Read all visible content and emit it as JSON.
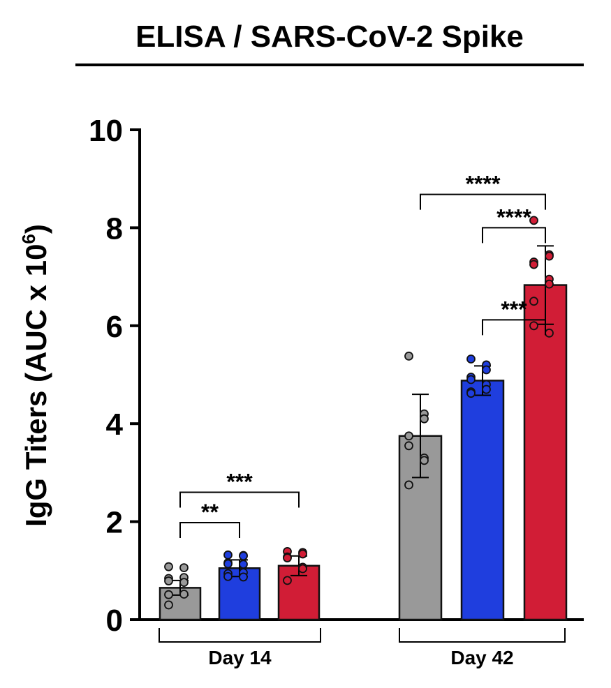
{
  "chart_data": {
    "type": "bar",
    "title": "ELISA / SARS-CoV-2 Spike",
    "ylabel": "IgG Titers (AUC x 10",
    "ylabel_sup": "6",
    "ylabel_close": ")",
    "ylim": [
      0,
      10
    ],
    "yticks": [
      "0",
      "2",
      "4",
      "6",
      "8",
      "10"
    ],
    "groups": [
      {
        "label": "Day 14",
        "bars": [
          {
            "color": "#999999",
            "mean": 0.65,
            "sd": 0.15,
            "points": [
              1.08,
              1.06,
              0.86,
              0.84,
              0.79,
              0.76,
              0.52,
              0.51,
              0.3
            ]
          },
          {
            "color": "#1f3ede",
            "mean": 1.05,
            "sd": 0.17,
            "points": [
              1.32,
              1.31,
              1.3,
              1.16,
              1.14,
              1.13,
              0.96,
              0.94,
              0.88,
              0.87
            ]
          },
          {
            "color": "#d11d36",
            "mean": 1.1,
            "sd": 0.2,
            "points": [
              1.39,
              1.37,
              1.34,
              1.28,
              1.26,
              1.07,
              1.04,
              0.8
            ]
          }
        ]
      },
      {
        "label": "Day 42",
        "bars": [
          {
            "color": "#999999",
            "mean": 3.75,
            "sd": 0.85,
            "points": [
              5.38,
              4.2,
              4.1,
              3.75,
              3.55,
              3.3,
              3.25,
              2.75
            ]
          },
          {
            "color": "#1f3ede",
            "mean": 4.88,
            "sd": 0.3,
            "points": [
              5.32,
              5.2,
              5.1,
              4.95,
              4.9,
              4.8,
              4.7,
              4.65,
              4.62
            ]
          },
          {
            "color": "#d11d36",
            "mean": 6.83,
            "sd": 0.8,
            "points": [
              8.15,
              7.45,
              7.42,
              7.3,
              7.25,
              6.95,
              6.85,
              6.5,
              6.0,
              5.85
            ]
          }
        ]
      }
    ],
    "comparisons": [
      {
        "group": 0,
        "from": 0,
        "to": 1,
        "y": 1.98,
        "label": "**"
      },
      {
        "group": 0,
        "from": 0,
        "to": 2,
        "y": 2.6,
        "label": "***"
      },
      {
        "group": 1,
        "from": 1,
        "to": 2,
        "y": 6.12,
        "label": "***"
      },
      {
        "group": 1,
        "from": 2,
        "to": 2,
        "y": 8.0,
        "label": "****",
        "from_bar": 1
      },
      {
        "group": 1,
        "from": 0,
        "to": 2,
        "y": 8.68,
        "label": "****"
      }
    ]
  }
}
